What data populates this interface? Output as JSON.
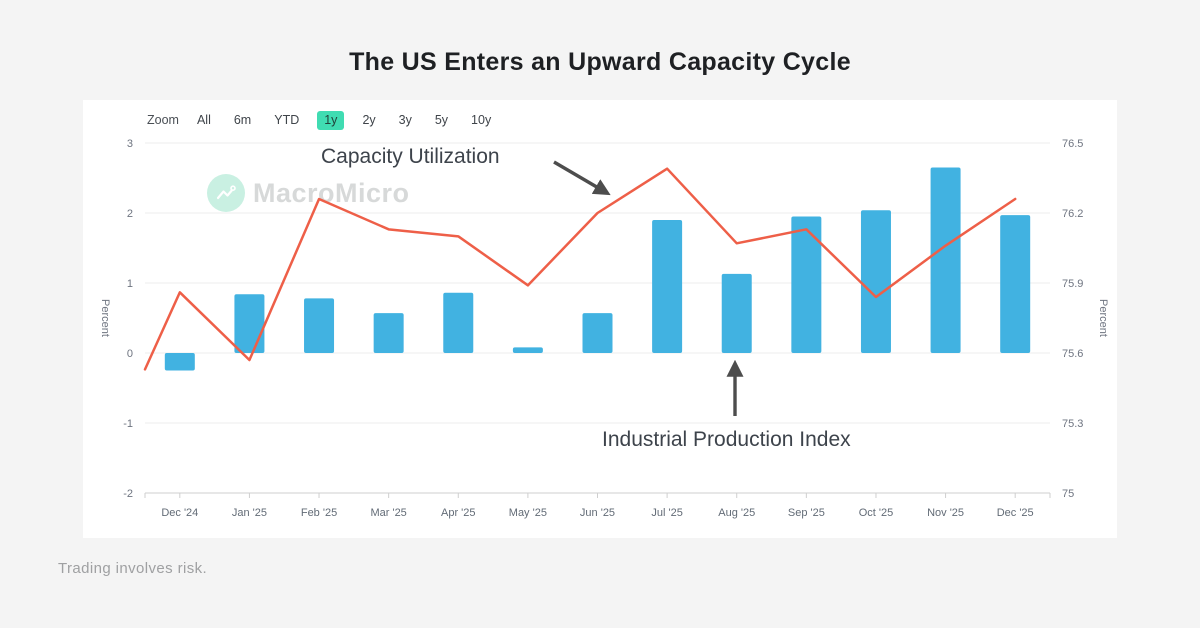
{
  "page": {
    "title": "The US Enters an Upward Capacity Cycle",
    "footer": "Trading involves risk."
  },
  "watermark": {
    "brand": "MacroMicro"
  },
  "chart_toolbar": {
    "zoom_label": "Zoom",
    "selected_bg_color": "#40dcb2",
    "buttons": [
      {
        "label": "All",
        "selected": false
      },
      {
        "label": "6m",
        "selected": false
      },
      {
        "label": "YTD",
        "selected": false
      },
      {
        "label": "1y",
        "selected": true
      },
      {
        "label": "2y",
        "selected": false
      },
      {
        "label": "3y",
        "selected": false
      },
      {
        "label": "5y",
        "selected": false
      },
      {
        "label": "10y",
        "selected": false
      }
    ]
  },
  "chart_data": {
    "type": "bar+line combo",
    "categories": [
      "Dec '24",
      "Jan '25",
      "Feb '25",
      "Mar '25",
      "Apr '25",
      "May '25",
      "Jun '25",
      "Jul '25",
      "Aug '25",
      "Sep '25",
      "Oct '25",
      "Nov '25",
      "Dec '25"
    ],
    "series": [
      {
        "name": "Industrial Production Index",
        "type": "bar",
        "axis": "left",
        "color": "#41b2e1",
        "values": [
          -0.25,
          0.84,
          0.78,
          0.57,
          0.86,
          0.08,
          0.57,
          1.9,
          1.13,
          1.95,
          2.04,
          2.65,
          1.97
        ]
      },
      {
        "name": "Capacity Utilization",
        "type": "line",
        "axis": "right",
        "color": "#ee5f48",
        "pre_point": {
          "label": "Nov '24 (clipped at plot edge)",
          "value": 75.53
        },
        "values": [
          75.86,
          75.57,
          76.26,
          76.13,
          76.1,
          75.89,
          76.2,
          76.39,
          76.07,
          76.13,
          75.84,
          76.06,
          76.26
        ]
      }
    ],
    "left_axis": {
      "title": "Percent",
      "min": -2,
      "max": 3,
      "ticks": [
        3,
        2,
        1,
        0,
        -1,
        -2
      ]
    },
    "right_axis": {
      "title": "Percent",
      "min": 75,
      "max": 76.5,
      "ticks": [
        "76.5",
        "76.2",
        "75.9",
        "75.6",
        "75.3",
        "75"
      ]
    },
    "grid": true,
    "legend": "none",
    "annotations": [
      {
        "text": "Capacity Utilization",
        "points_to": "line series near Jun '25"
      },
      {
        "text": "Industrial Production Index",
        "points_to": "bar series at Aug '25"
      }
    ]
  }
}
